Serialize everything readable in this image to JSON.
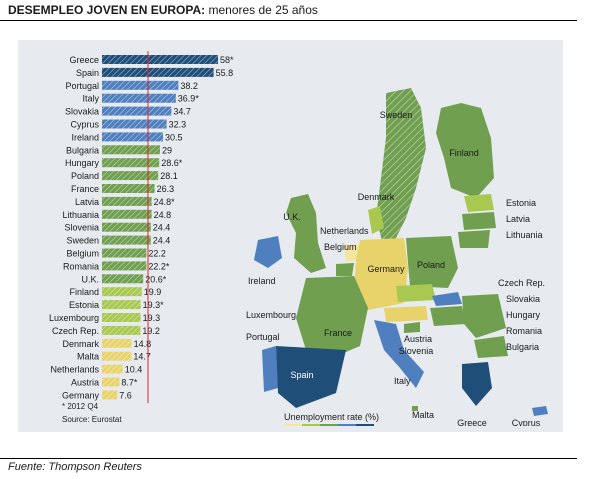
{
  "header": {
    "title_bold": "DESEMPLEO JOVEN EN EUROPA:",
    "title_rest": " menores de 25 años"
  },
  "footer": {
    "source": "Fuente: Thompson Reuters"
  },
  "notes": {
    "asterisk": "* 2012 Q4",
    "source": "Source: Eurostat"
  },
  "chart_data": {
    "type": "bar",
    "orientation": "horizontal",
    "categories": [
      "Greece",
      "Spain",
      "Portugal",
      "Italy",
      "Slovakia",
      "Cyprus",
      "Ireland",
      "Bulgaria",
      "Hungary",
      "Poland",
      "France",
      "Latvia",
      "Lithuania",
      "Slovenia",
      "Sweden",
      "Belgium",
      "Romania",
      "U.K.",
      "Finland",
      "Estonia",
      "Luxembourg",
      "Czech Rep.",
      "Denmark",
      "Malta",
      "Netherlands",
      "Austria",
      "Germany"
    ],
    "values": [
      58,
      55.8,
      38.2,
      36.9,
      34.7,
      32.3,
      30.5,
      29,
      28.6,
      28.1,
      26.3,
      24.8,
      24.8,
      24.4,
      24.4,
      22.2,
      22.2,
      20.6,
      19.9,
      19.3,
      19.3,
      19.2,
      14.8,
      14.7,
      10.4,
      8.7,
      7.6
    ],
    "value_labels": [
      "58*",
      "55.8",
      "38.2",
      "36.9*",
      "34.7",
      "32.3",
      "30.5",
      "29",
      "28.6*",
      "28.1",
      "26.3",
      "24.8*",
      "24.8",
      "24.4",
      "24.4",
      "22.2",
      "22.2*",
      "20.6*",
      "19.9",
      "19.3*",
      "19.3",
      "19.2",
      "14.8",
      "14.7",
      "10.4",
      "8.7*",
      "7.6"
    ],
    "reference_line_value": 23,
    "xlim": [
      0,
      60
    ],
    "colors": {
      "dark_blue": "#1f4e79",
      "mid_blue": "#4f7fbf",
      "green": "#6f9f4f",
      "light_green": "#a8c84f",
      "yellow": "#e8d36a",
      "ref_line": "#d9262b"
    }
  },
  "map": {
    "labels": [
      "Sweden",
      "Finland",
      "Estonia",
      "Latvia",
      "Lithuania",
      "Denmark",
      "U.K.",
      "Netherlands",
      "Belgium",
      "Ireland",
      "Germany",
      "Poland",
      "Czech Rep.",
      "Slovakia",
      "Hungary",
      "Romania",
      "Bulgaria",
      "Luxembourg",
      "France",
      "Austria",
      "Slovenia",
      "Portugal",
      "Spain",
      "Italy",
      "Malta",
      "Greece",
      "Cyprus"
    ],
    "legend": {
      "title": "Unemployment rate (%)",
      "ticks": [
        "10",
        "20",
        "30",
        "40"
      ],
      "colors": [
        "#f3e6a0",
        "#a8c84f",
        "#6f9f4f",
        "#4f7fbf",
        "#1f4e79"
      ]
    }
  }
}
